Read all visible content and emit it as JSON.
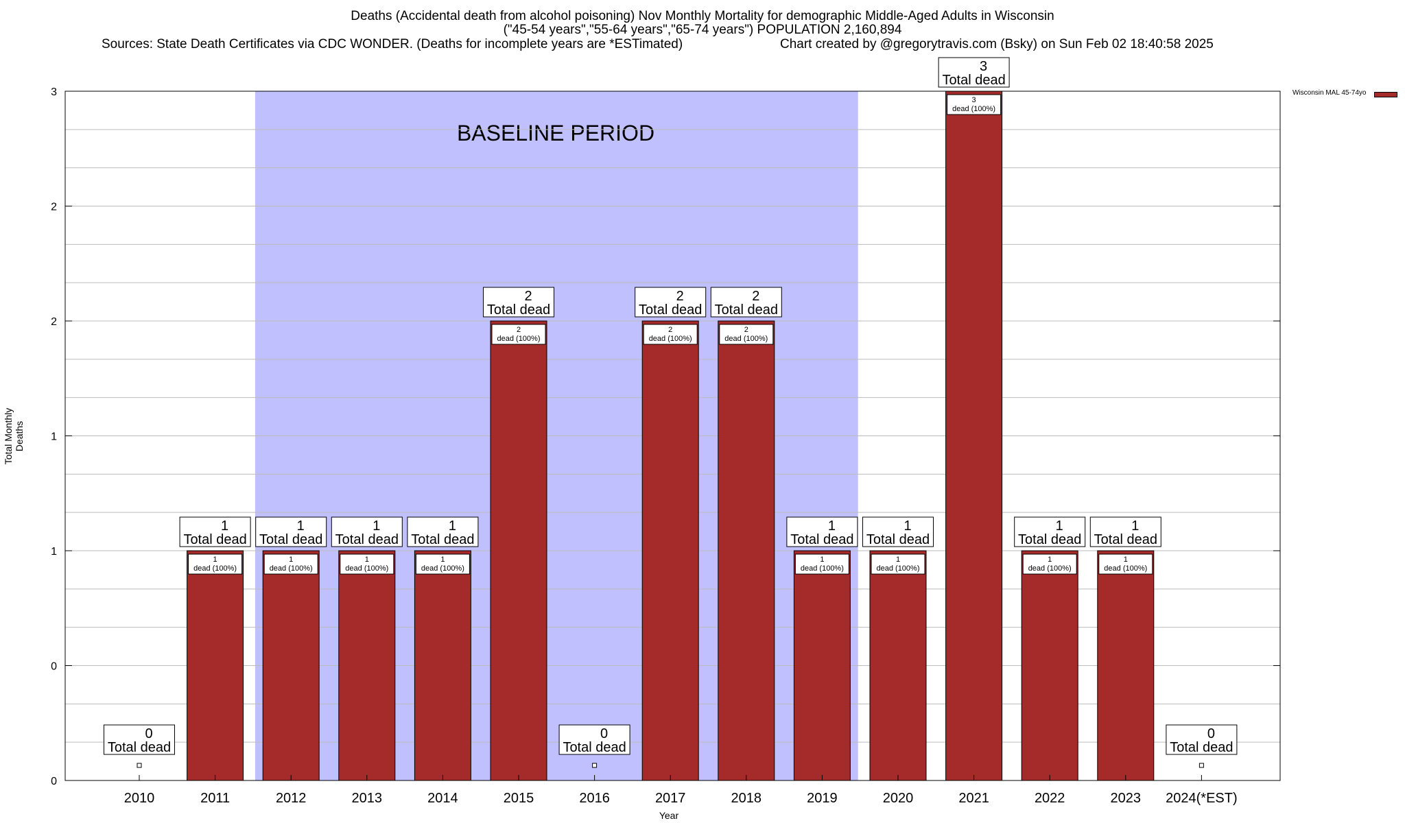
{
  "title": {
    "line1": "Deaths (Accidental death from alcohol poisoning) Nov Monthly Mortality for demographic Middle-Aged Adults in Wisconsin",
    "line2": "(\"45-54 years\",\"55-64 years\",\"65-74 years\") POPULATION 2,160,894",
    "sources": "Sources: State Death Certificates via CDC WONDER. (Deaths for incomplete years are *ESTimated)",
    "credit": "Chart created by @gregorytravis.com (Bsky) on Sun Feb 02 18:40:58 2025"
  },
  "chart_data": {
    "type": "bar",
    "xlabel": "Year",
    "ylabel": "Total Monthly Deaths",
    "ylim": [
      0,
      3
    ],
    "ytick_values": [
      0,
      0.5,
      1,
      1.5,
      2,
      2.5,
      3
    ],
    "ytick_labels": [
      "0",
      "0",
      "1",
      "1",
      "2",
      "2",
      "3"
    ],
    "grid": true,
    "categories": [
      "2010",
      "2011",
      "2012",
      "2013",
      "2014",
      "2015",
      "2016",
      "2017",
      "2018",
      "2019",
      "2020",
      "2021",
      "2022",
      "2023",
      "2024(*EST)"
    ],
    "series": [
      {
        "name": "Wisconsin MAL 45-74yo",
        "color": "#a52a2a",
        "values": [
          0,
          1,
          1,
          1,
          1,
          2,
          0,
          2,
          2,
          1,
          1,
          3,
          1,
          1,
          0
        ]
      }
    ],
    "total_label_suffix": "Total dead",
    "segment_label_suffix": "dead (100%)",
    "baseline": {
      "label": "BASELINE PERIOD",
      "start": "2012",
      "end": "2019",
      "color": "#c0c0ff"
    },
    "legend": {
      "position": "top-right",
      "label": "Wisconsin MAL 45-74yo"
    }
  }
}
